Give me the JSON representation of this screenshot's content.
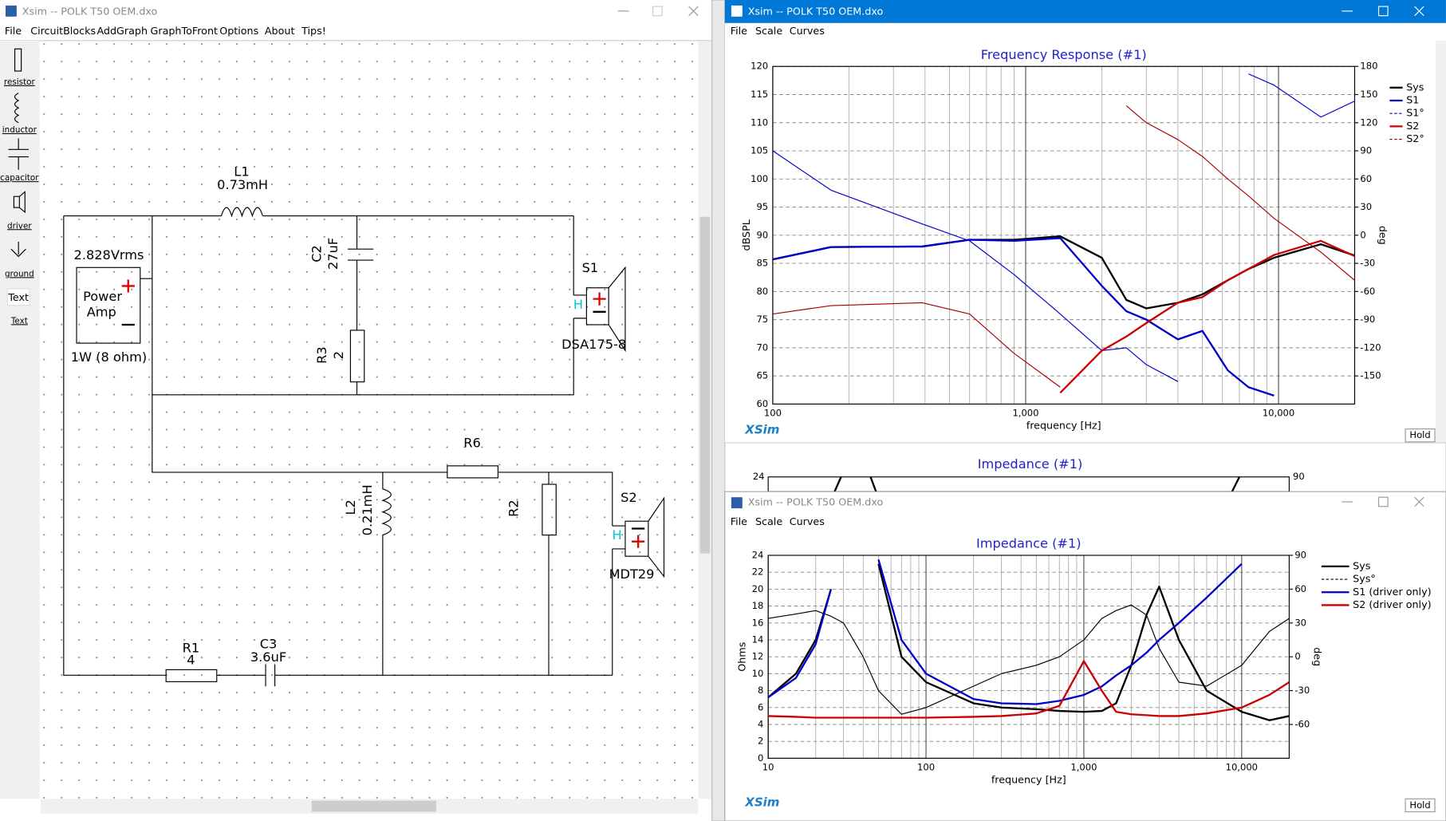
{
  "schematic_window": {
    "title": "Xsim -- POLK T50 OEM.dxo",
    "menu": [
      "File",
      "CircuitBlocks",
      "AddGraph",
      "GraphToFront",
      "Options",
      "About",
      "Tips!"
    ],
    "toolbox": [
      "resistor",
      "inductor",
      "capacitor",
      "driver",
      "ground",
      "Text",
      "Text"
    ],
    "circuit": {
      "L1": {
        "name": "L1",
        "value": "0.73mH"
      },
      "C2": {
        "name": "C2",
        "value": "27uF"
      },
      "R3": {
        "name": "R3",
        "value": "2"
      },
      "amp": {
        "voltage": "2.828Vrms",
        "name": [
          "Power",
          "Amp"
        ],
        "power": "1W (8 ohm)"
      },
      "S1": {
        "name": "S1",
        "model": "DSA175-8",
        "marker": "H"
      },
      "R6": {
        "name": "R6"
      },
      "L2": {
        "name": "L2",
        "value": "0.21mH"
      },
      "R2": {
        "name": "R2"
      },
      "S2": {
        "name": "S2",
        "model": "MDT29",
        "marker": "H"
      },
      "R1": {
        "name": "R1",
        "value": "4"
      },
      "C3": {
        "name": "C3",
        "value": "3.6uF"
      }
    }
  },
  "response_window": {
    "title": "Xsim -- POLK T50 OEM.dxo",
    "menu": [
      "File",
      "Scale",
      "Curves"
    ],
    "brand": "XSim",
    "button": "Hold",
    "chart_data": {
      "type": "line",
      "title": "Frequency Response (#1)",
      "xlabel": "frequency [Hz]",
      "ylabel": "dBSPL",
      "y2label": "deg",
      "xscale": "log",
      "legend": "top-right",
      "grid": true,
      "xlim": [
        100,
        20000
      ],
      "xticks": [
        100,
        {
          "value": 1000,
          "label": "1,000"
        },
        {
          "value": 10000,
          "label": "10,000"
        }
      ],
      "ylim": [
        60,
        120
      ],
      "yticks": [
        60,
        65,
        70,
        75,
        80,
        85,
        90,
        95,
        100,
        105,
        110,
        115,
        120
      ],
      "y2lim": [
        -180,
        180
      ],
      "y2ticks": [
        -150,
        -120,
        -90,
        -60,
        -30,
        0,
        30,
        60,
        90,
        120,
        150,
        180
      ],
      "x": [
        100,
        170,
        390,
        600,
        900,
        1370,
        2000,
        2500,
        3000,
        4000,
        5000,
        6300,
        7600,
        9600,
        14700,
        20000
      ],
      "series": [
        {
          "name": "Sys",
          "color": "#000000",
          "line_width": 2,
          "values": [
            85.7,
            87.9,
            88,
            89.2,
            89.2,
            89.8,
            86,
            78.5,
            77,
            78,
            79.5,
            82,
            84,
            86,
            88.4,
            86.4
          ]
        },
        {
          "name": "S1",
          "color": "#0000cc",
          "line_width": 2,
          "values": [
            85.7,
            87.9,
            88,
            89.2,
            89,
            89.5,
            81,
            76.5,
            75,
            71.5,
            73,
            66,
            63,
            61.5,
            null,
            null
          ]
        },
        {
          "name": "S1°",
          "color": "#0000cc",
          "line_width": 1,
          "dashed": true,
          "axis": "y2",
          "values": [
            90,
            48,
            12,
            -6,
            -42,
            -84,
            -123,
            -120,
            -138,
            -156,
            null,
            null,
            172,
            160,
            126,
            143
          ]
        },
        {
          "name": "S2",
          "color": "#cc0000",
          "line_width": 2,
          "values": [
            null,
            null,
            null,
            null,
            null,
            62,
            69.5,
            72,
            74.4,
            78,
            79,
            82,
            84,
            86.5,
            89,
            86.3
          ]
        },
        {
          "name": "S2°",
          "color": "#aa0000",
          "line_width": 1,
          "dashed": true,
          "axis": "y2",
          "values": [
            -84,
            -75,
            -72,
            -84,
            -126,
            -162,
            null,
            138,
            120,
            102,
            84,
            60,
            42,
            18,
            -18,
            -48
          ]
        }
      ]
    }
  },
  "background_window": {
    "title": "Impedance (#1)",
    "ytick": 24,
    "y2tick": 90
  },
  "impedance_window": {
    "title": "Xsim -- POLK T50 OEM.dxo",
    "menu": [
      "File",
      "Scale",
      "Curves"
    ],
    "brand": "XSim",
    "button": "Hold",
    "chart_data": {
      "type": "line",
      "title": "Impedance (#1)",
      "xlabel": "frequency [Hz]",
      "ylabel": "Ohms",
      "y2label": "deg",
      "xscale": "log",
      "legend": "right",
      "grid": true,
      "xlim": [
        10,
        20000
      ],
      "xticks": [
        10,
        100,
        {
          "value": 1000,
          "label": "1,000"
        },
        {
          "value": 10000,
          "label": "10,000"
        }
      ],
      "ylim": [
        0,
        24
      ],
      "yticks": [
        0,
        2,
        4,
        6,
        8,
        10,
        12,
        14,
        16,
        18,
        20,
        22,
        24
      ],
      "y2lim": [
        -90,
        90
      ],
      "y2ticks": [
        -60,
        -30,
        0,
        30,
        60,
        90
      ],
      "x": [
        10,
        15,
        20,
        25,
        30,
        40,
        50,
        70,
        100,
        200,
        300,
        500,
        700,
        1000,
        1300,
        1600,
        2000,
        2500,
        3000,
        4000,
        6000,
        10000,
        15000,
        20000
      ],
      "series": [
        {
          "name": "Sys",
          "color": "#000000",
          "line_width": 2,
          "values": [
            7.2,
            10,
            14,
            20,
            null,
            null,
            23,
            12,
            9,
            6.5,
            6,
            5.8,
            5.6,
            5.5,
            5.6,
            6.5,
            11,
            17,
            20.3,
            14,
            8,
            5.5,
            4.5,
            5
          ]
        },
        {
          "name": "Sys°",
          "color": "#000000",
          "line_width": 1,
          "dashed": true,
          "axis": "y2",
          "values": [
            34,
            38,
            41,
            36,
            30,
            0,
            -30,
            -51,
            -45,
            -26,
            -15,
            -7.5,
            0,
            15,
            34,
            41,
            46,
            37,
            7.5,
            -22.5,
            -26,
            -7.5,
            22.5,
            34
          ]
        },
        {
          "name": "S1 (driver only)",
          "color": "#0000cc",
          "line_width": 2,
          "values": [
            7.2,
            9.5,
            13.5,
            20,
            null,
            null,
            23.5,
            14,
            10,
            7,
            6.5,
            6.4,
            6.8,
            7.5,
            8.5,
            9.8,
            11,
            12.5,
            14,
            16,
            19,
            23,
            null,
            null
          ]
        },
        {
          "name": "S2 (driver only)",
          "color": "#cc0000",
          "line_width": 2,
          "values": [
            5,
            4.9,
            4.8,
            4.8,
            4.8,
            4.8,
            4.8,
            4.8,
            4.8,
            4.9,
            5,
            5.3,
            6.2,
            11.5,
            8,
            5.5,
            5.2,
            5.1,
            5,
            5,
            5.3,
            6,
            7.5,
            9
          ]
        }
      ]
    }
  }
}
